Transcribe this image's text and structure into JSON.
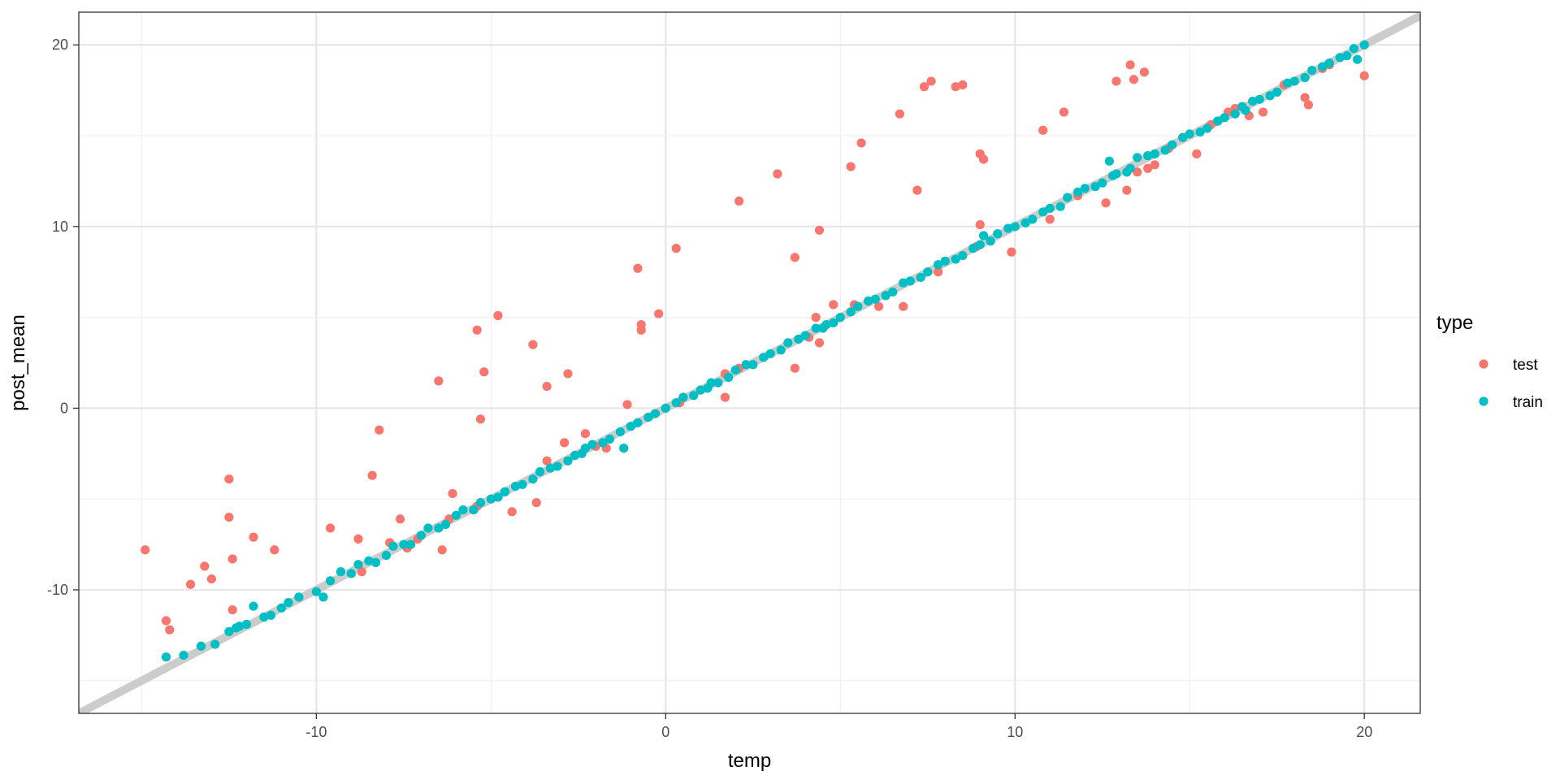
{
  "chart_data": {
    "type": "scatter",
    "title": "",
    "xlabel": "temp",
    "ylabel": "post_mean",
    "xlim": [
      -16.8,
      21.6
    ],
    "ylim": [
      -16.8,
      21.8
    ],
    "x_ticks": [
      -10,
      0,
      10,
      20
    ],
    "y_ticks": [
      -10,
      0,
      10,
      20
    ],
    "grid": true,
    "reference_line": {
      "slope": 1,
      "intercept": 0,
      "color": "#cccccc"
    },
    "legend": {
      "title": "type",
      "position": "right"
    },
    "series": [
      {
        "name": "test",
        "color": "#F8766D",
        "points": [
          [
            -14.9,
            -7.8
          ],
          [
            -14.3,
            -11.7
          ],
          [
            -14.2,
            -12.2
          ],
          [
            -13.6,
            -9.7
          ],
          [
            -13.2,
            -8.7
          ],
          [
            -13.0,
            -9.4
          ],
          [
            -12.5,
            -3.9
          ],
          [
            -12.5,
            -6.0
          ],
          [
            -12.4,
            -8.3
          ],
          [
            -12.4,
            -11.1
          ],
          [
            -11.8,
            -7.1
          ],
          [
            -11.2,
            -7.8
          ],
          [
            -9.6,
            -6.6
          ],
          [
            -8.8,
            -7.2
          ],
          [
            -8.7,
            -9.0
          ],
          [
            -8.4,
            -3.7
          ],
          [
            -8.2,
            -1.2
          ],
          [
            -7.9,
            -7.4
          ],
          [
            -7.6,
            -6.1
          ],
          [
            -7.4,
            -7.7
          ],
          [
            -7.1,
            -7.2
          ],
          [
            -6.5,
            1.5
          ],
          [
            -6.4,
            -7.8
          ],
          [
            -6.2,
            -6.1
          ],
          [
            -6.1,
            -4.7
          ],
          [
            -5.4,
            -5.4
          ],
          [
            -5.4,
            4.3
          ],
          [
            -5.3,
            -0.6
          ],
          [
            -5.2,
            2.0
          ],
          [
            -4.8,
            5.1
          ],
          [
            -4.4,
            -5.7
          ],
          [
            -3.8,
            3.5
          ],
          [
            -3.7,
            -5.2
          ],
          [
            -3.4,
            1.2
          ],
          [
            -3.4,
            -2.9
          ],
          [
            -2.9,
            -1.9
          ],
          [
            -2.8,
            1.9
          ],
          [
            -2.3,
            -1.4
          ],
          [
            -2.0,
            -2.1
          ],
          [
            -1.7,
            -2.2
          ],
          [
            -1.1,
            0.2
          ],
          [
            -0.8,
            7.7
          ],
          [
            -0.7,
            4.6
          ],
          [
            -0.7,
            4.3
          ],
          [
            -0.2,
            5.2
          ],
          [
            0.3,
            8.8
          ],
          [
            0.4,
            0.3
          ],
          [
            1.7,
            1.9
          ],
          [
            1.7,
            0.6
          ],
          [
            2.1,
            2.2
          ],
          [
            2.1,
            11.4
          ],
          [
            3.2,
            12.9
          ],
          [
            3.7,
            8.3
          ],
          [
            3.7,
            2.2
          ],
          [
            4.1,
            3.9
          ],
          [
            4.3,
            5.0
          ],
          [
            4.4,
            3.6
          ],
          [
            4.4,
            9.8
          ],
          [
            4.8,
            5.7
          ],
          [
            5.3,
            13.3
          ],
          [
            5.4,
            5.7
          ],
          [
            5.6,
            14.6
          ],
          [
            5.8,
            5.9
          ],
          [
            6.1,
            5.6
          ],
          [
            6.7,
            16.2
          ],
          [
            6.8,
            5.6
          ],
          [
            7.2,
            12.0
          ],
          [
            7.4,
            17.7
          ],
          [
            7.6,
            18.0
          ],
          [
            7.8,
            7.5
          ],
          [
            8.3,
            17.7
          ],
          [
            8.5,
            17.8
          ],
          [
            8.9,
            8.9
          ],
          [
            9.0,
            14.0
          ],
          [
            9.1,
            13.7
          ],
          [
            9.0,
            10.1
          ],
          [
            9.9,
            8.6
          ],
          [
            10.8,
            15.3
          ],
          [
            11.4,
            16.3
          ],
          [
            11.0,
            10.4
          ],
          [
            11.8,
            11.7
          ],
          [
            12.6,
            11.3
          ],
          [
            13.2,
            12.0
          ],
          [
            12.9,
            18.0
          ],
          [
            13.3,
            18.9
          ],
          [
            13.4,
            18.1
          ],
          [
            13.7,
            18.5
          ],
          [
            13.5,
            13.0
          ],
          [
            13.8,
            13.2
          ],
          [
            14.0,
            13.4
          ],
          [
            14.4,
            14.3
          ],
          [
            15.2,
            14.0
          ],
          [
            15.6,
            15.6
          ],
          [
            16.1,
            16.3
          ],
          [
            16.3,
            16.5
          ],
          [
            16.7,
            16.1
          ],
          [
            17.1,
            16.3
          ],
          [
            17.7,
            17.8
          ],
          [
            18.3,
            17.1
          ],
          [
            18.4,
            16.7
          ],
          [
            18.8,
            18.7
          ],
          [
            19.0,
            18.9
          ],
          [
            20.0,
            18.3
          ]
        ]
      },
      {
        "name": "train",
        "color": "#00BFC4",
        "points": [
          [
            -14.3,
            -13.7
          ],
          [
            -12.9,
            -13.0
          ],
          [
            -12.5,
            -12.3
          ],
          [
            -12.0,
            -11.9
          ],
          [
            -11.5,
            -11.5
          ],
          [
            -11.0,
            -11.0
          ],
          [
            -11.8,
            -10.9
          ],
          [
            -12.3,
            -12.1
          ],
          [
            -10.5,
            -10.4
          ],
          [
            -10.0,
            -10.1
          ],
          [
            -9.6,
            -9.5
          ],
          [
            -9.0,
            -9.1
          ],
          [
            -8.5,
            -8.4
          ],
          [
            -8.0,
            -8.1
          ],
          [
            -7.5,
            -7.5
          ],
          [
            -7.0,
            -7.0
          ],
          [
            -6.5,
            -6.6
          ],
          [
            -6.0,
            -5.9
          ],
          [
            -5.5,
            -5.6
          ],
          [
            -5.0,
            -5.0
          ],
          [
            -4.6,
            -4.6
          ],
          [
            -4.1,
            -4.2
          ],
          [
            -3.6,
            -3.5
          ],
          [
            -3.1,
            -3.2
          ],
          [
            -2.6,
            -2.6
          ],
          [
            -2.1,
            -2.0
          ],
          [
            -1.6,
            -1.7
          ],
          [
            -1.2,
            -2.2
          ],
          [
            -1.0,
            -1.0
          ],
          [
            -0.5,
            -0.5
          ],
          [
            0.0,
            0.0
          ],
          [
            0.5,
            0.6
          ],
          [
            1.0,
            1.0
          ],
          [
            1.5,
            1.4
          ],
          [
            2.0,
            2.1
          ],
          [
            2.5,
            2.4
          ],
          [
            3.0,
            3.0
          ],
          [
            3.5,
            3.6
          ],
          [
            4.0,
            4.0
          ],
          [
            4.5,
            4.4
          ],
          [
            5.0,
            5.0
          ],
          [
            5.5,
            5.6
          ],
          [
            6.0,
            6.0
          ],
          [
            6.5,
            6.4
          ],
          [
            7.0,
            7.0
          ],
          [
            7.5,
            7.5
          ],
          [
            8.0,
            8.1
          ],
          [
            8.5,
            8.4
          ],
          [
            9.0,
            9.0
          ],
          [
            9.5,
            9.6
          ],
          [
            10.0,
            10.0
          ],
          [
            10.5,
            10.4
          ],
          [
            11.0,
            11.0
          ],
          [
            11.5,
            11.6
          ],
          [
            12.0,
            12.1
          ],
          [
            12.5,
            12.4
          ],
          [
            12.7,
            13.6
          ],
          [
            13.2,
            13.0
          ],
          [
            13.5,
            13.8
          ],
          [
            14.0,
            14.0
          ],
          [
            14.5,
            14.5
          ],
          [
            15.0,
            15.1
          ],
          [
            15.5,
            15.4
          ],
          [
            16.0,
            16.0
          ],
          [
            16.5,
            16.6
          ],
          [
            17.0,
            17.0
          ],
          [
            17.5,
            17.4
          ],
          [
            18.0,
            18.0
          ],
          [
            18.5,
            18.6
          ],
          [
            19.0,
            19.0
          ],
          [
            19.5,
            19.4
          ],
          [
            20.0,
            20.0
          ],
          [
            19.8,
            19.2
          ],
          [
            -13.3,
            -13.1
          ],
          [
            -13.8,
            -13.6
          ],
          [
            -12.2,
            -12.0
          ],
          [
            -11.3,
            -11.4
          ],
          [
            -10.8,
            -10.7
          ],
          [
            -9.8,
            -10.4
          ],
          [
            -9.3,
            -9.0
          ],
          [
            -8.8,
            -8.6
          ],
          [
            -8.3,
            -8.5
          ],
          [
            -7.8,
            -7.6
          ],
          [
            -7.3,
            -7.5
          ],
          [
            -6.8,
            -6.6
          ],
          [
            -6.3,
            -6.4
          ],
          [
            -5.8,
            -5.6
          ],
          [
            -5.3,
            -5.2
          ],
          [
            -4.8,
            -4.9
          ],
          [
            -4.3,
            -4.3
          ],
          [
            -3.8,
            -3.9
          ],
          [
            -3.3,
            -3.3
          ],
          [
            -2.8,
            -2.9
          ],
          [
            -2.3,
            -2.2
          ],
          [
            -1.8,
            -1.9
          ],
          [
            -1.3,
            -1.3
          ],
          [
            -0.8,
            -0.8
          ],
          [
            -0.3,
            -0.3
          ],
          [
            0.3,
            0.3
          ],
          [
            0.8,
            0.7
          ],
          [
            1.3,
            1.4
          ],
          [
            1.8,
            1.7
          ],
          [
            2.3,
            2.4
          ],
          [
            2.8,
            2.8
          ],
          [
            3.3,
            3.2
          ],
          [
            3.8,
            3.8
          ],
          [
            4.3,
            4.4
          ],
          [
            4.8,
            4.7
          ],
          [
            5.3,
            5.3
          ],
          [
            5.8,
            5.9
          ],
          [
            6.3,
            6.2
          ],
          [
            6.8,
            6.9
          ],
          [
            7.3,
            7.2
          ],
          [
            7.8,
            7.9
          ],
          [
            8.3,
            8.2
          ],
          [
            8.8,
            8.8
          ],
          [
            9.3,
            9.2
          ],
          [
            9.8,
            9.9
          ],
          [
            10.3,
            10.2
          ],
          [
            10.8,
            10.8
          ],
          [
            11.3,
            11.1
          ],
          [
            11.8,
            11.9
          ],
          [
            12.3,
            12.2
          ],
          [
            12.8,
            12.8
          ],
          [
            13.3,
            13.2
          ],
          [
            13.8,
            13.9
          ],
          [
            14.3,
            14.2
          ],
          [
            14.8,
            14.9
          ],
          [
            15.3,
            15.2
          ],
          [
            15.8,
            15.8
          ],
          [
            16.3,
            16.2
          ],
          [
            16.8,
            16.9
          ],
          [
            17.3,
            17.2
          ],
          [
            17.8,
            17.9
          ],
          [
            18.3,
            18.2
          ],
          [
            18.8,
            18.8
          ],
          [
            19.3,
            19.3
          ],
          [
            19.7,
            19.8
          ],
          [
            9.1,
            9.5
          ],
          [
            12.9,
            12.9
          ],
          [
            -2.4,
            -2.5
          ],
          [
            1.2,
            1.1
          ],
          [
            4.6,
            4.6
          ],
          [
            16.6,
            16.4
          ]
        ]
      }
    ]
  }
}
